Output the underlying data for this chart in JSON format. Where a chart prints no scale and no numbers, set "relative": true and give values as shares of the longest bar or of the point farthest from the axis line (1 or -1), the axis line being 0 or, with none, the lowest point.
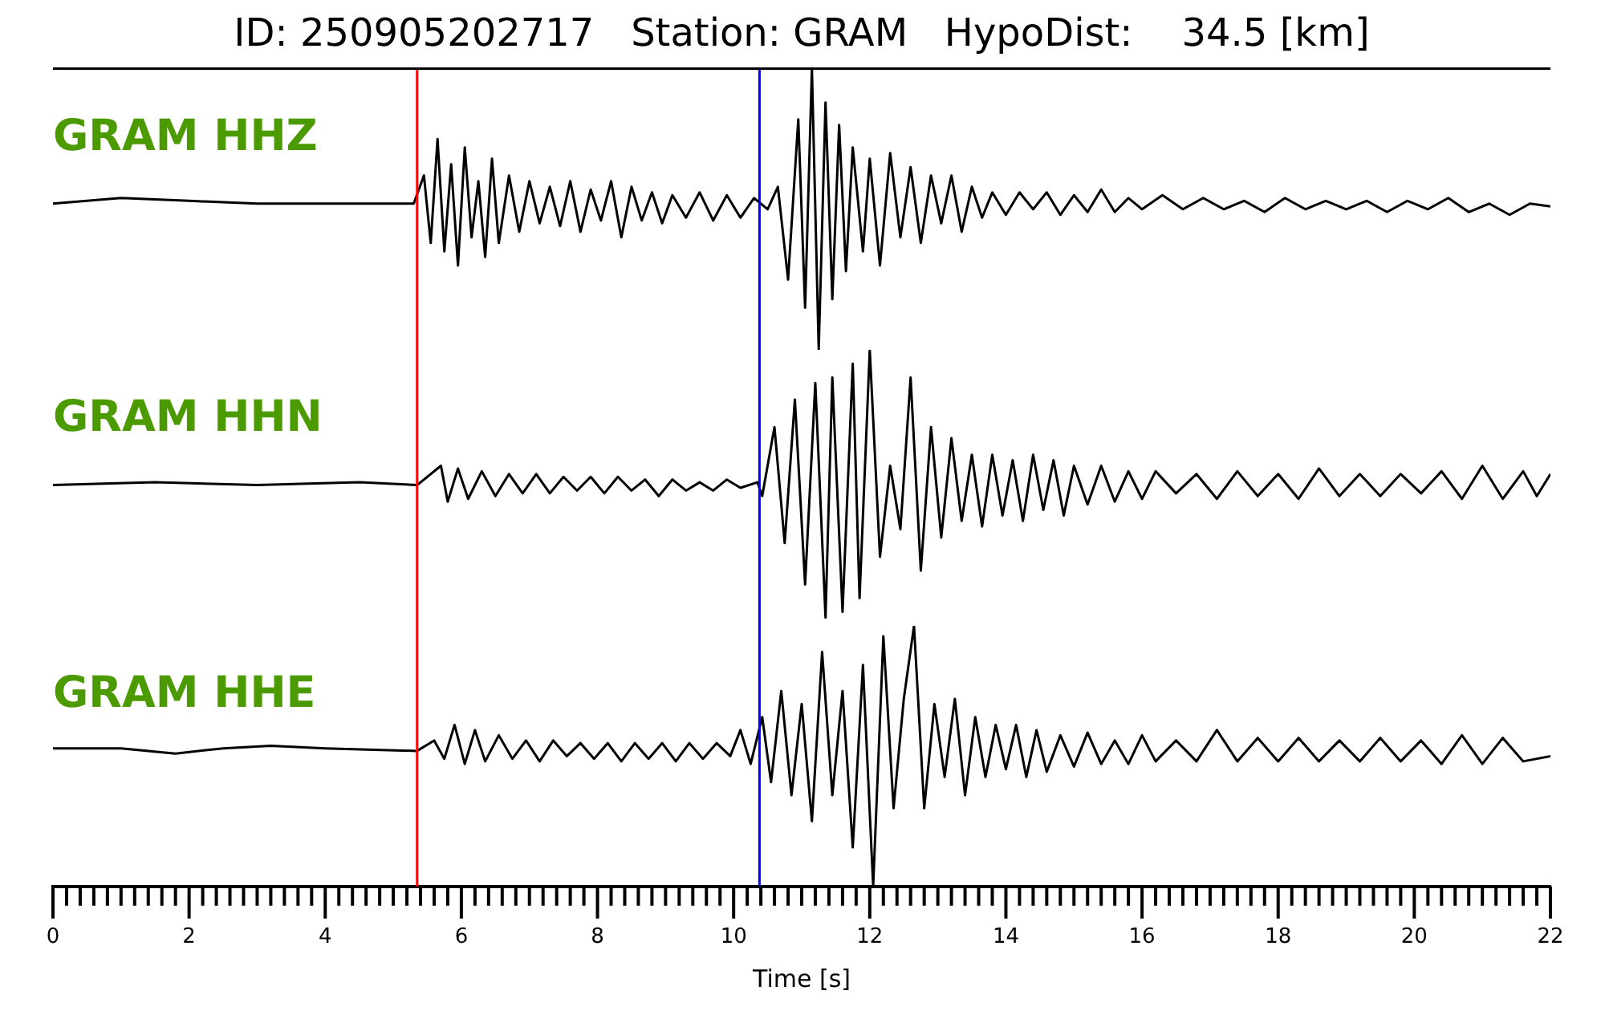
{
  "chart_data": [
    {
      "type": "line",
      "title": "ID: 250905202717   Station: GRAM   HypoDist:    34.5 [km]",
      "relative": true,
      "xlim": [
        0,
        22
      ],
      "tick_labels": false,
      "ref_lines": [
        {
          "axis": "x",
          "value": 5.35,
          "color": "#ff0000"
        },
        {
          "axis": "x",
          "value": 10.38,
          "color": "#0000ff"
        }
      ],
      "series": [
        {
          "name": "GRAM HHZ",
          "color": "#000000",
          "x": [
            0,
            1,
            2,
            3,
            4,
            5.3,
            5.45,
            5.55,
            5.65,
            5.75,
            5.85,
            5.95,
            6.05,
            6.15,
            6.25,
            6.35,
            6.45,
            6.55,
            6.7,
            6.85,
            7.0,
            7.15,
            7.3,
            7.45,
            7.6,
            7.75,
            7.9,
            8.05,
            8.2,
            8.35,
            8.5,
            8.65,
            8.8,
            8.95,
            9.1,
            9.3,
            9.5,
            9.7,
            9.9,
            10.1,
            10.3,
            10.5,
            10.65,
            10.8,
            10.95,
            11.05,
            11.15,
            11.25,
            11.35,
            11.45,
            11.55,
            11.65,
            11.75,
            11.9,
            12.0,
            12.15,
            12.3,
            12.45,
            12.6,
            12.75,
            12.9,
            13.05,
            13.2,
            13.35,
            13.5,
            13.65,
            13.8,
            14.0,
            14.2,
            14.4,
            14.6,
            14.8,
            15.0,
            15.2,
            15.4,
            15.6,
            15.8,
            16.0,
            16.3,
            16.6,
            16.9,
            17.2,
            17.5,
            17.8,
            18.1,
            18.4,
            18.7,
            19.0,
            19.3,
            19.6,
            19.9,
            20.2,
            20.5,
            20.8,
            21.1,
            21.4,
            21.7,
            22.0
          ],
          "values": [
            0.52,
            0.54,
            0.53,
            0.52,
            0.52,
            0.52,
            0.62,
            0.38,
            0.75,
            0.35,
            0.66,
            0.3,
            0.72,
            0.4,
            0.6,
            0.33,
            0.68,
            0.38,
            0.62,
            0.42,
            0.6,
            0.45,
            0.58,
            0.44,
            0.6,
            0.42,
            0.57,
            0.46,
            0.6,
            0.4,
            0.58,
            0.46,
            0.56,
            0.45,
            0.55,
            0.47,
            0.56,
            0.46,
            0.55,
            0.47,
            0.54,
            0.5,
            0.58,
            0.25,
            0.82,
            0.15,
            1.0,
            0.0,
            0.88,
            0.18,
            0.8,
            0.28,
            0.72,
            0.35,
            0.68,
            0.3,
            0.7,
            0.4,
            0.65,
            0.38,
            0.62,
            0.45,
            0.62,
            0.42,
            0.58,
            0.47,
            0.56,
            0.48,
            0.56,
            0.5,
            0.56,
            0.48,
            0.55,
            0.49,
            0.57,
            0.49,
            0.54,
            0.5,
            0.55,
            0.5,
            0.54,
            0.5,
            0.53,
            0.49,
            0.54,
            0.5,
            0.53,
            0.5,
            0.53,
            0.49,
            0.53,
            0.5,
            0.54,
            0.49,
            0.52,
            0.48,
            0.52,
            0.51
          ]
        }
      ]
    },
    {
      "type": "line",
      "relative": true,
      "xlim": [
        0,
        22
      ],
      "tick_labels": false,
      "ref_lines": [
        {
          "axis": "x",
          "value": 5.35,
          "color": "#ff0000"
        },
        {
          "axis": "x",
          "value": 10.38,
          "color": "#0000ff"
        }
      ],
      "series": [
        {
          "name": "GRAM HHN",
          "color": "#000000",
          "x": [
            0,
            1.5,
            3,
            4.5,
            5.35,
            5.7,
            5.8,
            5.95,
            6.1,
            6.3,
            6.5,
            6.7,
            6.9,
            7.1,
            7.3,
            7.5,
            7.7,
            7.9,
            8.1,
            8.3,
            8.5,
            8.7,
            8.9,
            9.1,
            9.3,
            9.5,
            9.7,
            9.9,
            10.1,
            10.35,
            10.42,
            10.6,
            10.75,
            10.9,
            11.05,
            11.2,
            11.35,
            11.45,
            11.6,
            11.75,
            11.85,
            12.0,
            12.15,
            12.3,
            12.45,
            12.6,
            12.75,
            12.9,
            13.05,
            13.2,
            13.35,
            13.5,
            13.65,
            13.8,
            13.95,
            14.1,
            14.25,
            14.4,
            14.55,
            14.7,
            14.85,
            15.0,
            15.2,
            15.4,
            15.6,
            15.8,
            16.0,
            16.2,
            16.5,
            16.8,
            17.1,
            17.4,
            17.7,
            18.0,
            18.3,
            18.6,
            18.9,
            19.2,
            19.5,
            19.8,
            20.1,
            20.4,
            20.7,
            21.0,
            21.3,
            21.6,
            21.8,
            22.0
          ],
          "values": [
            0.51,
            0.52,
            0.51,
            0.52,
            0.51,
            0.58,
            0.45,
            0.57,
            0.46,
            0.56,
            0.47,
            0.55,
            0.48,
            0.55,
            0.48,
            0.54,
            0.49,
            0.54,
            0.48,
            0.54,
            0.49,
            0.53,
            0.47,
            0.53,
            0.49,
            0.52,
            0.49,
            0.53,
            0.5,
            0.52,
            0.47,
            0.72,
            0.3,
            0.82,
            0.15,
            0.88,
            0.03,
            0.9,
            0.05,
            0.95,
            0.1,
            1.0,
            0.25,
            0.58,
            0.35,
            0.9,
            0.2,
            0.72,
            0.32,
            0.68,
            0.38,
            0.62,
            0.36,
            0.62,
            0.4,
            0.6,
            0.38,
            0.62,
            0.42,
            0.6,
            0.4,
            0.58,
            0.44,
            0.58,
            0.45,
            0.56,
            0.46,
            0.56,
            0.48,
            0.55,
            0.46,
            0.56,
            0.47,
            0.55,
            0.46,
            0.57,
            0.47,
            0.55,
            0.47,
            0.55,
            0.48,
            0.56,
            0.46,
            0.58,
            0.46,
            0.56,
            0.47,
            0.55
          ]
        }
      ]
    },
    {
      "type": "line",
      "relative": true,
      "xlim": [
        0,
        22
      ],
      "xlabel": "Time [s]",
      "tick_labels": "x",
      "xticks": [
        0,
        {
          "value": 0.2,
          "label": null
        },
        {
          "value": 0.4,
          "label": null
        },
        {
          "value": 0.6,
          "label": null
        },
        {
          "value": 0.8,
          "label": null
        },
        {
          "value": 1,
          "label": null
        },
        {
          "value": 1.2,
          "label": null
        },
        {
          "value": 1.4,
          "label": null
        },
        {
          "value": 1.6,
          "label": null
        },
        {
          "value": 1.8,
          "label": null
        },
        2,
        {
          "value": 2.2,
          "label": null
        },
        {
          "value": 2.4,
          "label": null
        },
        {
          "value": 2.6,
          "label": null
        },
        {
          "value": 2.8,
          "label": null
        },
        {
          "value": 3,
          "label": null
        },
        {
          "value": 3.2,
          "label": null
        },
        {
          "value": 3.4,
          "label": null
        },
        {
          "value": 3.6,
          "label": null
        },
        {
          "value": 3.8,
          "label": null
        },
        4,
        {
          "value": 4.2,
          "label": null
        },
        {
          "value": 4.4,
          "label": null
        },
        {
          "value": 4.6,
          "label": null
        },
        {
          "value": 4.8,
          "label": null
        },
        {
          "value": 5,
          "label": null
        },
        {
          "value": 5.2,
          "label": null
        },
        {
          "value": 5.4,
          "label": null
        },
        {
          "value": 5.6,
          "label": null
        },
        {
          "value": 5.8,
          "label": null
        },
        6,
        {
          "value": 6.2,
          "label": null
        },
        {
          "value": 6.4,
          "label": null
        },
        {
          "value": 6.6,
          "label": null
        },
        {
          "value": 6.8,
          "label": null
        },
        {
          "value": 7,
          "label": null
        },
        {
          "value": 7.2,
          "label": null
        },
        {
          "value": 7.4,
          "label": null
        },
        {
          "value": 7.6,
          "label": null
        },
        {
          "value": 7.8,
          "label": null
        },
        8,
        {
          "value": 8.2,
          "label": null
        },
        {
          "value": 8.4,
          "label": null
        },
        {
          "value": 8.6,
          "label": null
        },
        {
          "value": 8.8,
          "label": null
        },
        {
          "value": 9,
          "label": null
        },
        {
          "value": 9.2,
          "label": null
        },
        {
          "value": 9.4,
          "label": null
        },
        {
          "value": 9.6,
          "label": null
        },
        {
          "value": 9.8,
          "label": null
        },
        10,
        {
          "value": 10.2,
          "label": null
        },
        {
          "value": 10.4,
          "label": null
        },
        {
          "value": 10.6,
          "label": null
        },
        {
          "value": 10.8,
          "label": null
        },
        {
          "value": 11,
          "label": null
        },
        {
          "value": 11.2,
          "label": null
        },
        {
          "value": 11.4,
          "label": null
        },
        {
          "value": 11.6,
          "label": null
        },
        {
          "value": 11.8,
          "label": null
        },
        12,
        {
          "value": 12.2,
          "label": null
        },
        {
          "value": 12.4,
          "label": null
        },
        {
          "value": 12.6,
          "label": null
        },
        {
          "value": 12.8,
          "label": null
        },
        {
          "value": 13,
          "label": null
        },
        {
          "value": 13.2,
          "label": null
        },
        {
          "value": 13.4,
          "label": null
        },
        {
          "value": 13.6,
          "label": null
        },
        {
          "value": 13.8,
          "label": null
        },
        14,
        {
          "value": 14.2,
          "label": null
        },
        {
          "value": 14.4,
          "label": null
        },
        {
          "value": 14.6,
          "label": null
        },
        {
          "value": 14.8,
          "label": null
        },
        {
          "value": 15,
          "label": null
        },
        {
          "value": 15.2,
          "label": null
        },
        {
          "value": 15.4,
          "label": null
        },
        {
          "value": 15.6,
          "label": null
        },
        {
          "value": 15.8,
          "label": null
        },
        16,
        {
          "value": 16.2,
          "label": null
        },
        {
          "value": 16.4,
          "label": null
        },
        {
          "value": 16.6,
          "label": null
        },
        {
          "value": 16.8,
          "label": null
        },
        {
          "value": 17,
          "label": null
        },
        {
          "value": 17.2,
          "label": null
        },
        {
          "value": 17.4,
          "label": null
        },
        {
          "value": 17.6,
          "label": null
        },
        {
          "value": 17.8,
          "label": null
        },
        18,
        {
          "value": 18.2,
          "label": null
        },
        {
          "value": 18.4,
          "label": null
        },
        {
          "value": 18.6,
          "label": null
        },
        {
          "value": 18.8,
          "label": null
        },
        {
          "value": 19,
          "label": null
        },
        {
          "value": 19.2,
          "label": null
        },
        {
          "value": 19.4,
          "label": null
        },
        {
          "value": 19.6,
          "label": null
        },
        {
          "value": 19.8,
          "label": null
        },
        20,
        {
          "value": 20.2,
          "label": null
        },
        {
          "value": 20.4,
          "label": null
        },
        {
          "value": 20.6,
          "label": null
        },
        {
          "value": 20.8,
          "label": null
        },
        {
          "value": 21,
          "label": null
        },
        {
          "value": 21.2,
          "label": null
        },
        {
          "value": 21.4,
          "label": null
        },
        {
          "value": 21.6,
          "label": null
        },
        {
          "value": 21.8,
          "label": null
        },
        22
      ],
      "ref_lines": [
        {
          "axis": "x",
          "value": 5.35,
          "color": "#ff0000"
        },
        {
          "axis": "x",
          "value": 10.38,
          "color": "#0000ff"
        }
      ],
      "series": [
        {
          "name": "GRAM HHE",
          "color": "#000000",
          "x": [
            0,
            1,
            1.8,
            2.5,
            3.2,
            4,
            5.35,
            5.6,
            5.75,
            5.9,
            6.05,
            6.2,
            6.35,
            6.55,
            6.75,
            6.95,
            7.15,
            7.35,
            7.55,
            7.75,
            7.95,
            8.15,
            8.35,
            8.55,
            8.75,
            8.95,
            9.15,
            9.35,
            9.55,
            9.75,
            9.95,
            10.1,
            10.25,
            10.42,
            10.55,
            10.7,
            10.85,
            11.0,
            11.15,
            11.3,
            11.45,
            11.6,
            11.75,
            11.9,
            12.05,
            12.2,
            12.35,
            12.5,
            12.65,
            12.8,
            12.95,
            13.1,
            13.25,
            13.4,
            13.55,
            13.7,
            13.85,
            14.0,
            14.15,
            14.3,
            14.45,
            14.6,
            14.8,
            15.0,
            15.2,
            15.4,
            15.6,
            15.8,
            16.0,
            16.2,
            16.5,
            16.8,
            17.1,
            17.4,
            17.7,
            18.0,
            18.3,
            18.6,
            18.9,
            19.2,
            19.5,
            19.8,
            20.1,
            20.4,
            20.7,
            21.0,
            21.3,
            21.6,
            22.0
          ],
          "values": [
            0.53,
            0.53,
            0.51,
            0.53,
            0.54,
            0.53,
            0.52,
            0.56,
            0.49,
            0.62,
            0.47,
            0.6,
            0.48,
            0.58,
            0.49,
            0.56,
            0.48,
            0.56,
            0.5,
            0.55,
            0.49,
            0.55,
            0.48,
            0.55,
            0.49,
            0.55,
            0.48,
            0.55,
            0.49,
            0.55,
            0.5,
            0.6,
            0.47,
            0.65,
            0.4,
            0.75,
            0.35,
            0.7,
            0.25,
            0.9,
            0.35,
            0.75,
            0.15,
            0.85,
            0.0,
            0.96,
            0.3,
            0.72,
            1.0,
            0.3,
            0.7,
            0.42,
            0.72,
            0.35,
            0.65,
            0.42,
            0.62,
            0.45,
            0.62,
            0.42,
            0.6,
            0.44,
            0.58,
            0.46,
            0.59,
            0.47,
            0.56,
            0.47,
            0.58,
            0.48,
            0.56,
            0.48,
            0.6,
            0.48,
            0.57,
            0.48,
            0.57,
            0.48,
            0.56,
            0.48,
            0.57,
            0.48,
            0.56,
            0.47,
            0.58,
            0.47,
            0.57,
            0.48,
            0.5
          ]
        }
      ]
    }
  ]
}
